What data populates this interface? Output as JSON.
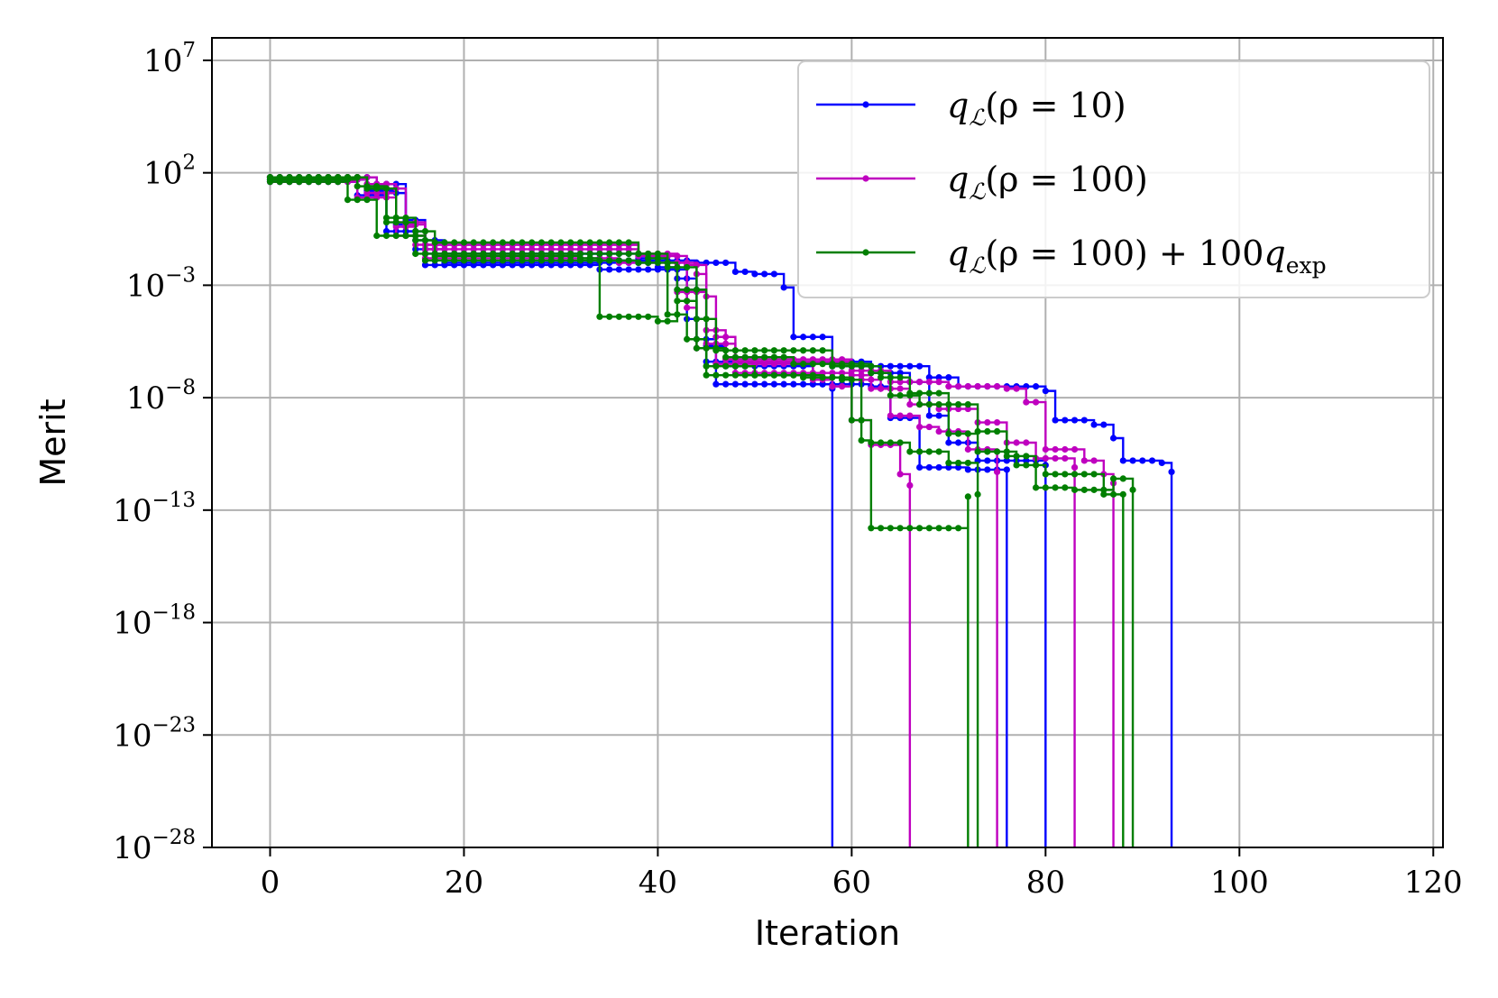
{
  "chart_data": {
    "type": "line",
    "xlabel": "Iteration",
    "ylabel": "Merit",
    "xlim": [
      -6,
      121
    ],
    "ylim_log10": [
      -28,
      8
    ],
    "yscale": "log",
    "grid": true,
    "legend_position": "top-right",
    "x_ticks": [
      "0",
      "20",
      "40",
      "60",
      "80",
      "100",
      "120"
    ],
    "y_ticks": [
      {
        "base": "10",
        "exp": "7"
      },
      {
        "base": "10",
        "exp": "2"
      },
      {
        "base": "10",
        "exp": "−3"
      },
      {
        "base": "10",
        "exp": "−8"
      },
      {
        "base": "10",
        "exp": "−13"
      },
      {
        "base": "10",
        "exp": "−18"
      },
      {
        "base": "10",
        "exp": "−23"
      },
      {
        "base": "10",
        "exp": "−28"
      }
    ],
    "legend": [
      {
        "color": "#0000ff",
        "parts": [
          "q",
          "ℒ",
          "(ρ = 10)"
        ]
      },
      {
        "color": "#bf00bf",
        "parts": [
          "q",
          "ℒ",
          "(ρ = 100)"
        ]
      },
      {
        "color": "#007f00",
        "parts": [
          "q",
          "ℒ",
          "(ρ = 100) + 100",
          "q",
          "exp"
        ]
      }
    ],
    "series_groups": [
      {
        "color": "#0000ff",
        "runs": [
          {
            "log10_merit": [
              [
                0,
                1.7
              ],
              [
                10,
                1.2
              ],
              [
                13,
                -0.3
              ],
              [
                15,
                -1.0
              ],
              [
                16,
                -2.1
              ],
              [
                34,
                -2.3
              ],
              [
                42,
                -2.7
              ],
              [
                44,
                -5.4
              ],
              [
                46,
                -7.4
              ],
              [
                58,
                -7.6
              ],
              [
                58,
                -28
              ]
            ]
          },
          {
            "log10_merit": [
              [
                0,
                1.6
              ],
              [
                9,
                1.0
              ],
              [
                12,
                -0.6
              ],
              [
                15,
                -1.4
              ],
              [
                18,
                -2.0
              ],
              [
                40,
                -2.2
              ],
              [
                42,
                -3.2
              ],
              [
                45,
                -5.7
              ],
              [
                47,
                -6.6
              ],
              [
                56,
                -7.4
              ],
              [
                62,
                -7.5
              ],
              [
                64,
                -8.9
              ],
              [
                67,
                -11.1
              ],
              [
                72,
                -11.2
              ],
              [
                76,
                -11.2
              ],
              [
                76,
                -28
              ]
            ]
          },
          {
            "log10_merit": [
              [
                0,
                1.8
              ],
              [
                11,
                1.5
              ],
              [
                14,
                -0.1
              ],
              [
                16,
                -1.0
              ],
              [
                18,
                -1.6
              ],
              [
                38,
                -1.8
              ],
              [
                41,
                -2.3
              ],
              [
                43,
                -4.5
              ],
              [
                45,
                -6.4
              ],
              [
                62,
                -6.9
              ],
              [
                66,
                -7.3
              ],
              [
                68,
                -8.8
              ],
              [
                70,
                -10.0
              ],
              [
                73,
                -10.8
              ],
              [
                80,
                -11.0
              ],
              [
                80,
                -28
              ]
            ]
          },
          {
            "log10_merit": [
              [
                0,
                1.7
              ],
              [
                10,
                1.1
              ],
              [
                14,
                -0.6
              ],
              [
                16,
                -1.6
              ],
              [
                35,
                -1.9
              ],
              [
                44,
                -2.0
              ],
              [
                48,
                -2.4
              ],
              [
                50,
                -2.5
              ],
              [
                53,
                -3.1
              ],
              [
                54,
                -5.3
              ],
              [
                58,
                -6.6
              ],
              [
                68,
                -7.1
              ],
              [
                71,
                -7.5
              ],
              [
                80,
                -7.7
              ],
              [
                81,
                -9.0
              ],
              [
                85,
                -9.2
              ],
              [
                87,
                -9.8
              ],
              [
                88,
                -10.8
              ],
              [
                92,
                -10.9
              ],
              [
                93,
                -11.3
              ],
              [
                93,
                -28
              ]
            ]
          }
        ]
      },
      {
        "color": "#bf00bf",
        "runs": [
          {
            "log10_merit": [
              [
                0,
                1.8
              ],
              [
                11,
                1.3
              ],
              [
                14,
                -0.3
              ],
              [
                16,
                -1.4
              ],
              [
                38,
                -1.7
              ],
              [
                42,
                -2.0
              ],
              [
                43,
                -4.0
              ],
              [
                44,
                -5.8
              ],
              [
                46,
                -6.5
              ],
              [
                56,
                -7.2
              ],
              [
                58,
                -7.5
              ],
              [
                60,
                -9.0
              ],
              [
                62,
                -10.1
              ],
              [
                65,
                -11.4
              ],
              [
                66,
                -11.9
              ],
              [
                66,
                -28
              ]
            ]
          },
          {
            "log10_merit": [
              [
                0,
                1.6
              ],
              [
                9,
                0.9
              ],
              [
                13,
                -0.8
              ],
              [
                16,
                -1.8
              ],
              [
                36,
                -2.0
              ],
              [
                40,
                -2.0
              ],
              [
                42,
                -3.3
              ],
              [
                45,
                -5.6
              ],
              [
                48,
                -6.4
              ],
              [
                60,
                -7.0
              ],
              [
                62,
                -7.6
              ],
              [
                64,
                -8.8
              ],
              [
                67,
                -9.3
              ],
              [
                69,
                -9.5
              ],
              [
                72,
                -10.3
              ],
              [
                75,
                -11.3
              ],
              [
                75,
                -28
              ]
            ]
          },
          {
            "log10_merit": [
              [
                0,
                1.7
              ],
              [
                10,
                1.1
              ],
              [
                13,
                -0.4
              ],
              [
                15,
                -1.2
              ],
              [
                38,
                -1.7
              ],
              [
                43,
                -2.1
              ],
              [
                45,
                -3.5
              ],
              [
                46,
                -5.3
              ],
              [
                48,
                -6.9
              ],
              [
                60,
                -7.2
              ],
              [
                63,
                -7.6
              ],
              [
                66,
                -8.3
              ],
              [
                69,
                -8.5
              ],
              [
                73,
                -9.1
              ],
              [
                76,
                -10.0
              ],
              [
                79,
                -10.7
              ],
              [
                83,
                -11.1
              ],
              [
                83,
                -28
              ]
            ]
          },
          {
            "log10_merit": [
              [
                0,
                1.8
              ],
              [
                10,
                1.5
              ],
              [
                13,
                -0.2
              ],
              [
                16,
                -1.2
              ],
              [
                38,
                -1.6
              ],
              [
                42,
                -2.0
              ],
              [
                44,
                -2.5
              ],
              [
                45,
                -5.0
              ],
              [
                47,
                -6.3
              ],
              [
                60,
                -6.8
              ],
              [
                64,
                -7.3
              ],
              [
                70,
                -7.5
              ],
              [
                76,
                -7.6
              ],
              [
                78,
                -8.2
              ],
              [
                80,
                -10.3
              ],
              [
                83,
                -10.3
              ],
              [
                84,
                -10.8
              ],
              [
                86,
                -11.4
              ],
              [
                87,
                -11.8
              ],
              [
                87,
                -28
              ]
            ]
          }
        ]
      },
      {
        "color": "#007f00",
        "runs": [
          {
            "log10_merit": [
              [
                0,
                1.8
              ],
              [
                10,
                1.3
              ],
              [
                12,
                -0.2
              ],
              [
                15,
                -1.0
              ],
              [
                17,
                -1.7
              ],
              [
                32,
                -1.8
              ],
              [
                34,
                -4.4
              ],
              [
                40,
                -4.6
              ],
              [
                42,
                -3.2
              ],
              [
                45,
                -7.0
              ],
              [
                55,
                -7.1
              ],
              [
                59,
                -7.2
              ],
              [
                61,
                -9.9
              ],
              [
                62,
                -13.8
              ],
              [
                71,
                -13.8
              ],
              [
                72,
                -12.4
              ],
              [
                72,
                -28
              ]
            ]
          },
          {
            "log10_merit": [
              [
                0,
                1.6
              ],
              [
                8,
                0.8
              ],
              [
                11,
                -0.8
              ],
              [
                15,
                -1.6
              ],
              [
                39,
                -1.8
              ],
              [
                41,
                -4.3
              ],
              [
                43,
                -5.4
              ],
              [
                45,
                -6.6
              ],
              [
                50,
                -7.0
              ],
              [
                57,
                -7.1
              ],
              [
                60,
                -9.0
              ],
              [
                62,
                -10.0
              ],
              [
                66,
                -10.4
              ],
              [
                70,
                -10.9
              ],
              [
                73,
                -12.3
              ],
              [
                73,
                -28
              ]
            ]
          },
          {
            "log10_merit": [
              [
                0,
                1.7
              ],
              [
                9,
                1.4
              ],
              [
                12,
                0.0
              ],
              [
                14,
                -0.8
              ],
              [
                16,
                -1.9
              ],
              [
                38,
                -2.0
              ],
              [
                42,
                -3.7
              ],
              [
                44,
                -5.8
              ],
              [
                47,
                -6.2
              ],
              [
                54,
                -6.5
              ],
              [
                62,
                -6.9
              ],
              [
                64,
                -7.9
              ],
              [
                67,
                -8.3
              ],
              [
                70,
                -9.6
              ],
              [
                73,
                -10.4
              ],
              [
                77,
                -11.0
              ],
              [
                80,
                -11.4
              ],
              [
                85,
                -11.4
              ],
              [
                86,
                -12.3
              ],
              [
                88,
                -12.3
              ],
              [
                88,
                -28
              ]
            ]
          },
          {
            "log10_merit": [
              [
                0,
                1.8
              ],
              [
                10,
                1.3
              ],
              [
                13,
                0.0
              ],
              [
                15,
                -0.6
              ],
              [
                17,
                -1.1
              ],
              [
                38,
                -1.6
              ],
              [
                41,
                -2.2
              ],
              [
                44,
                -4.5
              ],
              [
                46,
                -5.9
              ],
              [
                58,
                -6.6
              ],
              [
                63,
                -7.1
              ],
              [
                66,
                -7.8
              ],
              [
                70,
                -8.3
              ],
              [
                73,
                -9.5
              ],
              [
                76,
                -10.6
              ],
              [
                79,
                -12.0
              ],
              [
                83,
                -12.1
              ],
              [
                87,
                -11.6
              ],
              [
                89,
                -12.1
              ],
              [
                89,
                -28
              ]
            ]
          }
        ]
      }
    ]
  }
}
